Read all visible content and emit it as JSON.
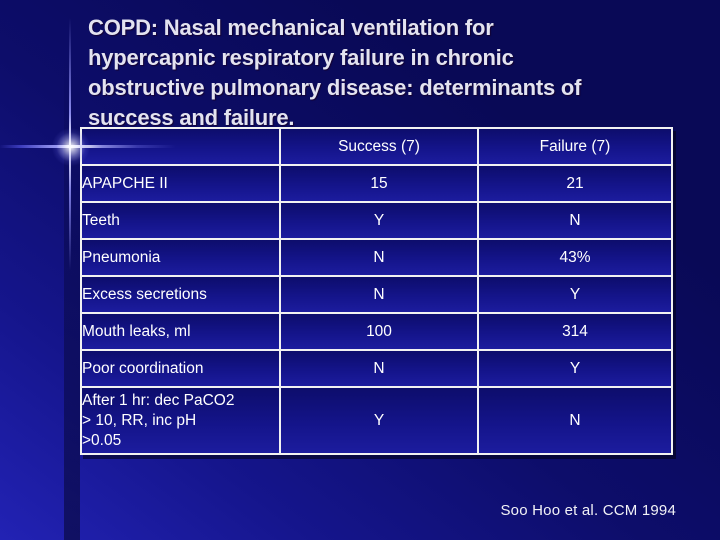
{
  "slide": {
    "title_lines": [
      "COPD: Nasal mechanical ventilation for",
      "hypercapnic respiratory failure in chronic",
      "obstructive pulmonary disease: determinants of",
      "success and failure."
    ],
    "citation": "Soo Hoo et al. CCM 1994"
  },
  "table": {
    "columns": [
      "",
      "Success (7)",
      "Failure (7)"
    ],
    "rows": [
      {
        "label": "APAPCHE II",
        "success": "15",
        "failure": "21"
      },
      {
        "label": "Teeth",
        "success": "Y",
        "failure": "N"
      },
      {
        "label": "Pneumonia",
        "success": "N",
        "failure": "43%"
      },
      {
        "label": "Excess secretions",
        "success": "N",
        "failure": "Y"
      },
      {
        "label": "Mouth leaks, ml",
        "success": "100",
        "failure": "314"
      },
      {
        "label": "Poor coordination",
        "success": "N",
        "failure": "Y"
      },
      {
        "label": "After 1 hr: dec PaCO2\n> 10, RR, inc pH\n>0.05",
        "success": "Y",
        "failure": "N"
      }
    ]
  },
  "colors": {
    "background_top_right": "#090956",
    "background_bottom_left": "#2222b4",
    "cell_fill": "#14148a",
    "table_border": "#f2f2f2",
    "title_text": "#e3e3f0",
    "body_text": "#ffffff",
    "accent_line": "#8a8aec",
    "accent_flare": "#ffffff"
  }
}
